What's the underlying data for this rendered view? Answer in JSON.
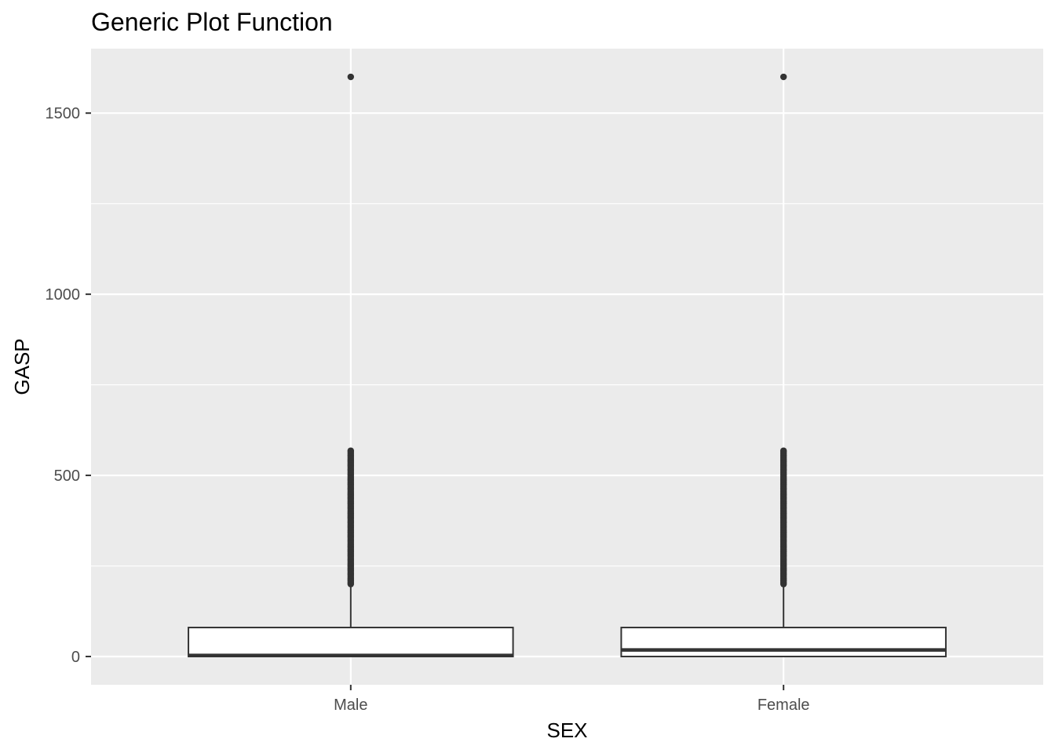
{
  "chart_data": {
    "type": "boxplot",
    "title": "Generic Plot Function",
    "xlabel": "SEX",
    "ylabel": "GASP",
    "ylim": [
      -78,
      1678
    ],
    "yticks": [
      0,
      500,
      1000,
      1500
    ],
    "yticks_minor": [
      250,
      750,
      1250
    ],
    "grid": true,
    "legend": "none",
    "colors": {
      "panel": "#ebebeb",
      "grid": "#ffffff",
      "box_fill": "#ffffff",
      "box_line": "#333333",
      "outlier": "#333333",
      "tick_text": "#4d4d4d"
    },
    "categories": [
      "Male",
      "Female"
    ],
    "boxes": [
      {
        "category": "Male",
        "whisker_low": 0,
        "q1": 0,
        "median": 3,
        "q3": 80,
        "whisker_high": 198,
        "outliers_range": [
          200,
          568
        ],
        "outliers_isolated": [
          1600
        ]
      },
      {
        "category": "Female",
        "whisker_low": 0,
        "q1": 0,
        "median": 18,
        "q3": 80,
        "whisker_high": 198,
        "outliers_range": [
          200,
          568
        ],
        "outliers_isolated": [
          1600
        ]
      }
    ]
  }
}
